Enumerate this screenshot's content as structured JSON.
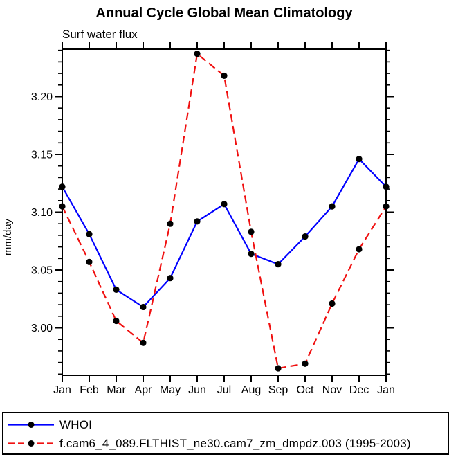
{
  "colors": {
    "background": "#ffffff",
    "axis": "#000000",
    "marker": "#000000",
    "series_blue": "#0000ff",
    "series_red": "#f01010"
  },
  "chart_data": {
    "type": "line",
    "title": "Annual Cycle Global Mean Climatology",
    "subtitle": "Surf water flux",
    "ylabel": "mm/day",
    "xlabel": "",
    "categories": [
      "Jan",
      "Feb",
      "Mar",
      "Apr",
      "May",
      "Jun",
      "Jul",
      "Aug",
      "Sep",
      "Oct",
      "Nov",
      "Dec",
      "Jan"
    ],
    "ylim": [
      2.959,
      3.241
    ],
    "y_major_ticks": [
      3.0,
      3.05,
      3.1,
      3.15,
      3.2
    ],
    "y_tick_labels": [
      "3.00",
      "3.05",
      "3.10",
      "3.15",
      "3.20"
    ],
    "y_minor_step": 0.01,
    "grid": false,
    "legend_position": "bottom",
    "series": [
      {
        "name": "WHOI",
        "color": "#0000ff",
        "style": "solid",
        "marker": "dot",
        "marker_color": "#000000",
        "values": [
          3.122,
          3.081,
          3.033,
          3.018,
          3.043,
          3.092,
          3.107,
          3.064,
          3.055,
          3.079,
          3.105,
          3.146,
          3.122
        ]
      },
      {
        "name": "f.cam6_4_089.FLTHIST_ne30.cam7_zm_dmpdz.003 (1995-2003)",
        "color": "#f01010",
        "style": "dashed",
        "marker": "dot",
        "marker_color": "#000000",
        "values": [
          3.105,
          3.057,
          3.006,
          2.987,
          3.09,
          3.237,
          3.218,
          3.083,
          2.965,
          2.969,
          3.021,
          3.068,
          3.105
        ]
      }
    ]
  }
}
